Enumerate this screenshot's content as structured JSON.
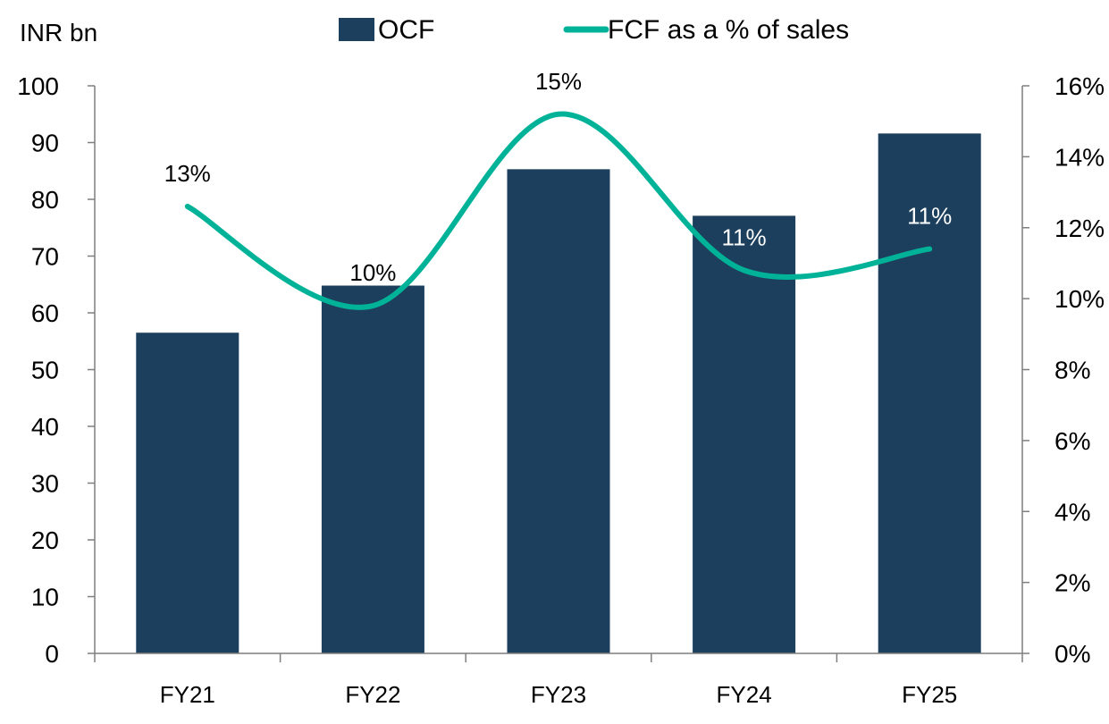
{
  "chart_data": {
    "type": "bar",
    "unit_label": "INR bn",
    "categories": [
      "FY21",
      "FY22",
      "FY23",
      "FY24",
      "FY25"
    ],
    "series": [
      {
        "name": "OCF",
        "type": "bar",
        "axis": "left",
        "values": [
          56.5,
          64.8,
          85.3,
          77.1,
          91.6
        ]
      },
      {
        "name": "FCF as a % of sales",
        "type": "line",
        "axis": "right",
        "smooth": true,
        "values": [
          12.6,
          9.8,
          15.2,
          10.8,
          11.4
        ],
        "data_labels": [
          "13%",
          "10%",
          "15%",
          "11%",
          "11%"
        ]
      }
    ],
    "left_axis": {
      "min": 0,
      "max": 100,
      "step": 10,
      "ticks": [
        "0",
        "10",
        "20",
        "30",
        "40",
        "50",
        "60",
        "70",
        "80",
        "90",
        "100"
      ]
    },
    "right_axis": {
      "min": 0,
      "max": 16,
      "step": 2,
      "ticks": [
        "0%",
        "2%",
        "4%",
        "6%",
        "8%",
        "10%",
        "12%",
        "14%",
        "16%"
      ]
    },
    "legend_position": "top",
    "grid": false,
    "colors": {
      "bar": "#1b3f5c",
      "line": "#00b398",
      "axis": "#7f7f7f"
    }
  }
}
